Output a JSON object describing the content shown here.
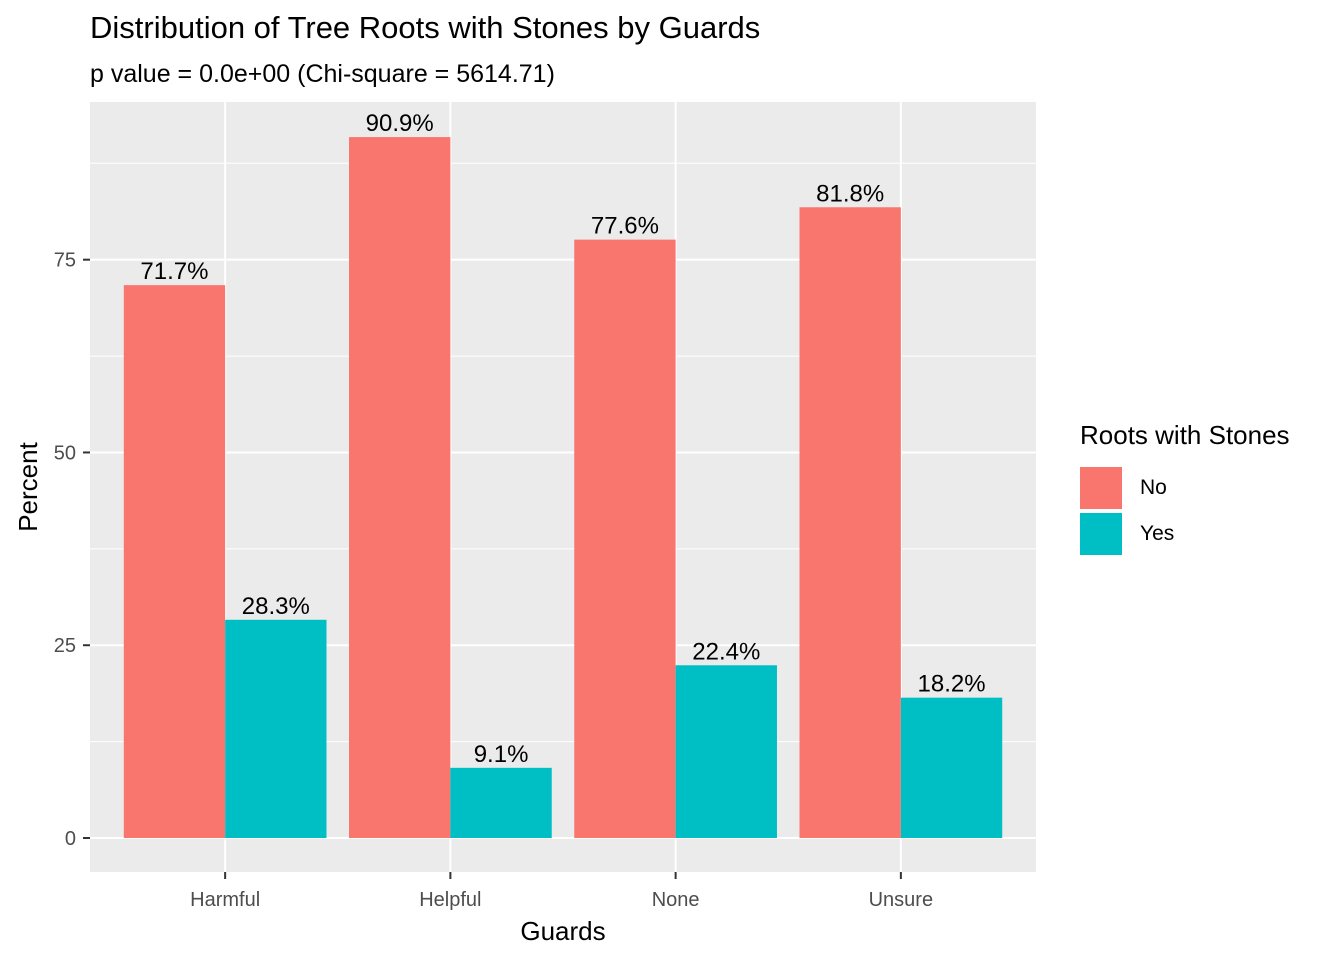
{
  "chart_data": {
    "type": "bar",
    "title": "Distribution of Tree Roots with Stones by Guards",
    "subtitle": "p value = 0.0e+00 (Chi-square = 5614.71)",
    "xlabel": "Guards",
    "ylabel": "Percent",
    "categories": [
      "Harmful",
      "Helpful",
      "None",
      "Unsure"
    ],
    "series": [
      {
        "name": "No",
        "values": [
          71.7,
          90.9,
          77.6,
          81.8
        ],
        "labels": [
          "71.7%",
          "90.9%",
          "77.6%",
          "81.8%"
        ],
        "color": "#F8766D"
      },
      {
        "name": "Yes",
        "values": [
          28.3,
          9.1,
          22.4,
          18.2
        ],
        "labels": [
          "28.3%",
          "9.1%",
          "22.4%",
          "18.2%"
        ],
        "color": "#00BFC4"
      }
    ],
    "ylim": [
      0,
      95.45
    ],
    "yticks": [
      0,
      25,
      50,
      75
    ],
    "ytick_labels": [
      "0",
      "25",
      "50",
      "75"
    ],
    "grid": true,
    "panel_background": "#EBEBEB",
    "legend": {
      "title": "Roots with Stones",
      "position": "right"
    }
  }
}
